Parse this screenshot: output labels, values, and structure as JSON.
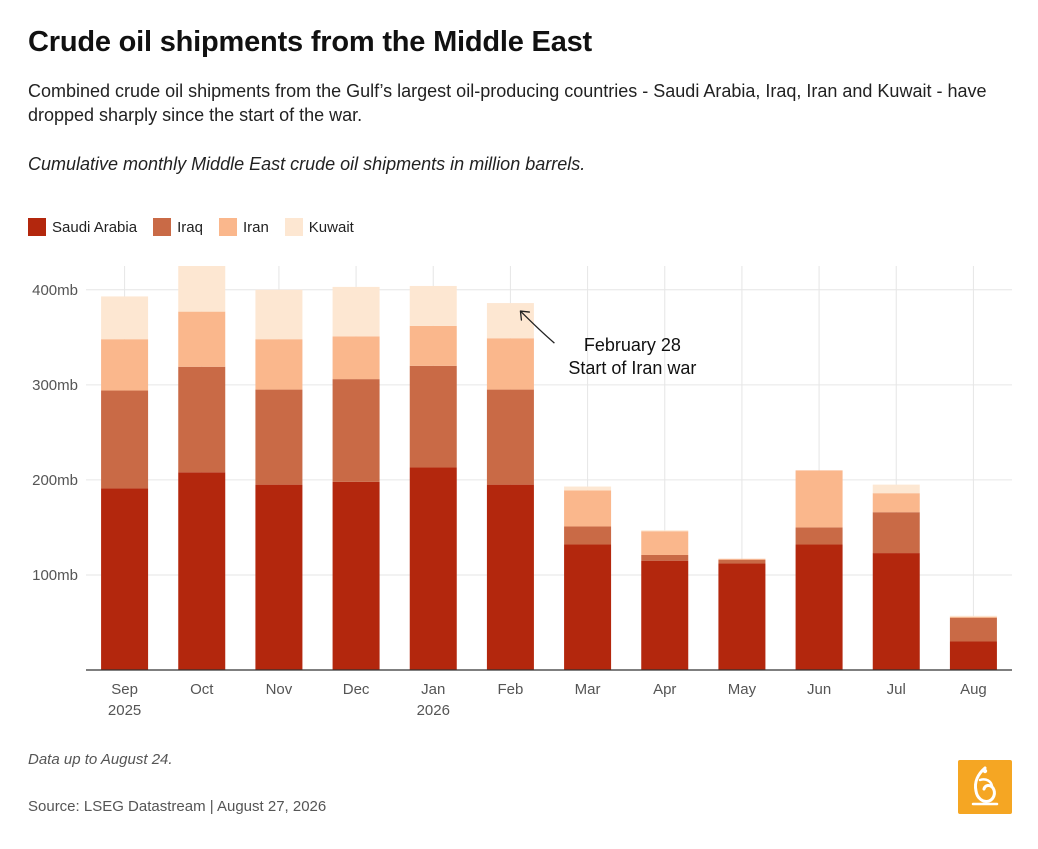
{
  "header": {
    "title": "Crude oil shipments from the Middle East",
    "subtitle": "Combined crude oil shipments from the Gulf’s largest oil-producing countries - Saudi Arabia, Iraq, Iran and Kuwait - have dropped sharply since the start of the war.",
    "note": "Cumulative monthly Middle East crude oil shipments in million barrels."
  },
  "footer": {
    "footnote": "Data up to August 24.",
    "source": "Source: LSEG Datastream | August 27, 2026"
  },
  "logo": {
    "icon": "al-jazeera-logo-icon",
    "color": "#f5a623"
  },
  "chart_data": {
    "type": "bar",
    "stacked": true,
    "categories": [
      "Sep",
      "Oct",
      "Nov",
      "Dec",
      "Jan",
      "Feb",
      "Mar",
      "Apr",
      "May",
      "Jun",
      "Jul",
      "Aug"
    ],
    "category_years": [
      "2025",
      "",
      "",
      "",
      "2026",
      "",
      "",
      "",
      "",
      "",
      "",
      ""
    ],
    "series": [
      {
        "name": "Saudi Arabia",
        "color": "#b3270d",
        "values": [
          191,
          208,
          195,
          198,
          213,
          195,
          132,
          115,
          112,
          132,
          123,
          30
        ]
      },
      {
        "name": "Iraq",
        "color": "#c96a46",
        "values": [
          103,
          111,
          100,
          108,
          107,
          100,
          19,
          6,
          4,
          18,
          43,
          25
        ]
      },
      {
        "name": "Iran",
        "color": "#fab78c",
        "values": [
          54,
          58,
          53,
          45,
          42,
          54,
          38,
          25,
          1,
          60,
          20,
          1
        ]
      },
      {
        "name": "Kuwait",
        "color": "#fde7d2",
        "values": [
          45,
          48,
          52,
          52,
          42,
          37,
          4,
          1,
          0,
          0,
          9,
          1
        ]
      }
    ],
    "y_ticks": [
      {
        "value": 100,
        "label": "100mb"
      },
      {
        "value": 200,
        "label": "200mb"
      },
      {
        "value": 300,
        "label": "300mb"
      },
      {
        "value": 400,
        "label": "400mb"
      }
    ],
    "ylim": [
      0,
      425
    ],
    "grid": true,
    "legend_position": "top-left",
    "annotation": {
      "category": "Feb",
      "line1": "February 28",
      "line2": "Start of Iran war"
    }
  }
}
